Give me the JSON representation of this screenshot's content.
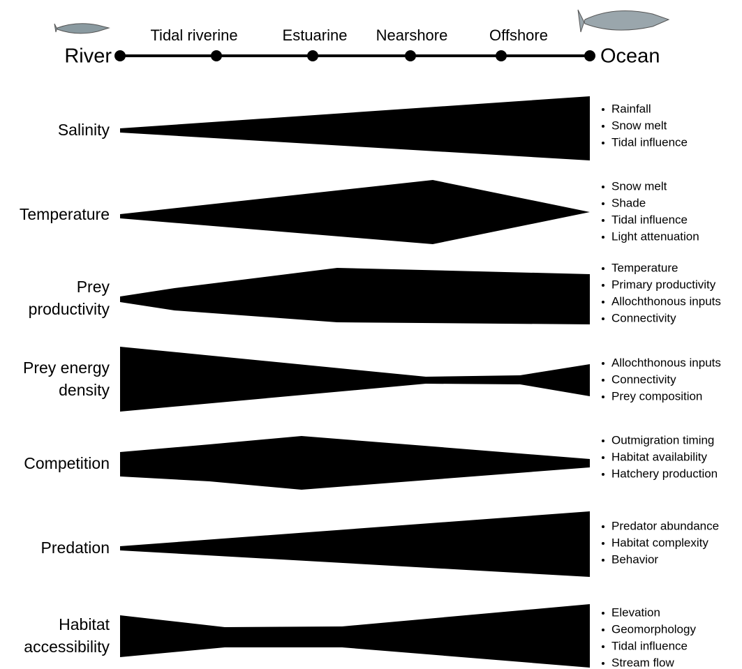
{
  "timeline": {
    "start": "River",
    "end": "Ocean",
    "stages": [
      "Tidal riverine",
      "Estuarine",
      "Nearshore",
      "Offshore"
    ]
  },
  "rows": [
    {
      "label": [
        "Salinity"
      ],
      "factors": [
        "Rainfall",
        "Snow melt",
        "Tidal influence"
      ]
    },
    {
      "label": [
        "Temperature"
      ],
      "factors": [
        "Snow melt",
        "Shade",
        "Tidal influence",
        "Light attenuation"
      ]
    },
    {
      "label": [
        "Prey",
        "productivity"
      ],
      "factors": [
        "Temperature",
        "Primary productivity",
        "Allochthonous inputs",
        "Connectivity"
      ]
    },
    {
      "label": [
        "Prey energy",
        "density"
      ],
      "factors": [
        "Allochthonous inputs",
        "Connectivity",
        "Prey composition"
      ]
    },
    {
      "label": [
        "Competition"
      ],
      "factors": [
        "Outmigration timing",
        "Habitat availability",
        "Hatchery production"
      ]
    },
    {
      "label": [
        "Predation"
      ],
      "factors": [
        "Predator abundance",
        "Habitat complexity",
        "Behavior"
      ]
    },
    {
      "label": [
        "Habitat",
        "accessibility"
      ],
      "factors": [
        "Elevation",
        "Geomorphology",
        "Tidal influence",
        "Stream flow"
      ]
    }
  ]
}
